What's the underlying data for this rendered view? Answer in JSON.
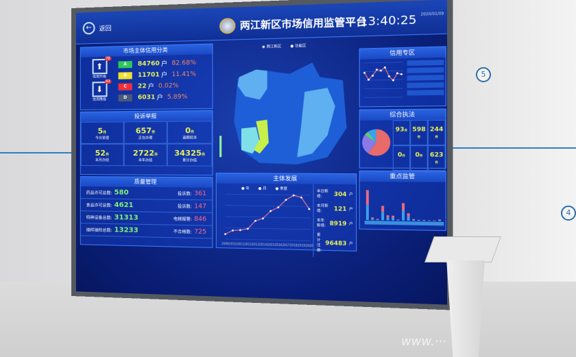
{
  "header": {
    "back_label": "返回",
    "title": "两江新区市场信用监管平台",
    "time": "13:40:25",
    "date": "2020/01/09"
  },
  "credit": {
    "title": "市场主体信用分类",
    "upgrade_label": "信用升级",
    "upgrade_count": "78",
    "downgrade_label": "信用降级",
    "downgrade_count": "63",
    "levels": [
      {
        "level": "A",
        "count": "84760",
        "unit": "户",
        "pct": "82.68%",
        "color": "#2ec85a"
      },
      {
        "level": "B",
        "count": "11701",
        "unit": "户",
        "pct": "11.41%",
        "color": "#f0e030"
      },
      {
        "level": "C",
        "count": "22",
        "unit": "户",
        "pct": "0.02%",
        "color": "#f0303a"
      },
      {
        "level": "D",
        "count": "6031",
        "unit": "户",
        "pct": "5.89%",
        "color": "#4a5a78"
      }
    ]
  },
  "complaints": {
    "title": "投诉举报",
    "cells": [
      {
        "value": "5",
        "unit": "件",
        "label": "今日受理"
      },
      {
        "value": "657",
        "unit": "件",
        "label": "正在办理"
      },
      {
        "value": "0",
        "unit": "件",
        "label": "逾期投诉"
      },
      {
        "value": "52",
        "unit": "件",
        "label": "本月办结"
      },
      {
        "value": "2722",
        "unit": "件",
        "label": "本年办结"
      },
      {
        "value": "34325",
        "unit": "件",
        "label": "累计办结"
      }
    ]
  },
  "quality": {
    "title": "质量管理",
    "rows": [
      {
        "l": "药品许可总数:",
        "lv": "580",
        "r": "投诉数:",
        "rv": "361"
      },
      {
        "l": "食品许可总数:",
        "lv": "4621",
        "r": "投诉数:",
        "rv": "147"
      },
      {
        "l": "特种设备总数:",
        "lv": "31313",
        "r": "电梯报警:",
        "rv": "846"
      },
      {
        "l": "抽样抽检总数:",
        "lv": "13233",
        "r": "不合格数:",
        "rv": "725"
      }
    ]
  },
  "map": {
    "legend": [
      "两江新区",
      "功能区"
    ],
    "colors": {
      "base": "#1e5fd8",
      "light": "#5fb0f0",
      "cyan": "#7fe0e8",
      "lime": "#c8f04a"
    }
  },
  "development": {
    "title": "主体发展",
    "tabs": [
      "年",
      "月",
      "季度"
    ],
    "stats": [
      {
        "label": "本日新增:",
        "value": "304",
        "unit": "户"
      },
      {
        "label": "本月新增:",
        "value": "121",
        "unit": "户"
      },
      {
        "label": "本年新增:",
        "value": "8919",
        "unit": "户"
      },
      {
        "label": "累计注册:",
        "value": "96483",
        "unit": "户"
      }
    ]
  },
  "credit_zone": {
    "title": "信用专区"
  },
  "enforcement": {
    "title": "综合执法",
    "cells": [
      {
        "value": "93",
        "unit": "件"
      },
      {
        "value": "598",
        "unit": "件"
      },
      {
        "value": "244",
        "unit": "件"
      },
      {
        "value": "0",
        "unit": "件"
      },
      {
        "value": "0",
        "unit": "件"
      },
      {
        "value": "623",
        "unit": "件"
      }
    ]
  },
  "supervision": {
    "title": "重点监管"
  },
  "chart_data": [
    {
      "type": "line",
      "x": [
        "2009",
        "2010",
        "2011",
        "2012",
        "2013",
        "2014",
        "2015",
        "2016",
        "2017",
        "2018",
        "2019",
        "2020"
      ],
      "values": [
        2000,
        3500,
        3700,
        4300,
        7500,
        8500,
        11500,
        13000,
        16000,
        17800,
        17000,
        12500
      ],
      "ylim": [
        0,
        18000
      ]
    },
    {
      "type": "line",
      "values": [
        250,
        180,
        220,
        280,
        270,
        300,
        210,
        170,
        240,
        230
      ],
      "ylim": [
        0,
        350
      ]
    },
    {
      "type": "pie",
      "values": [
        60,
        25,
        5,
        10
      ],
      "colors": [
        "#e86a6a",
        "#8a7ae8",
        "#5ad070",
        "#3aa0f0"
      ]
    },
    {
      "type": "bar",
      "series": [
        {
          "values": [
            45,
            4,
            2,
            25,
            8,
            8,
            2,
            30,
            12,
            3,
            2,
            2,
            1,
            1,
            3
          ]
        },
        {
          "values": [
            45,
            4,
            2,
            18,
            7,
            6,
            1,
            22,
            10,
            2,
            1,
            1,
            1,
            1,
            2
          ]
        }
      ],
      "colors": [
        "#3a9ff0",
        "#e86a80"
      ]
    }
  ]
}
